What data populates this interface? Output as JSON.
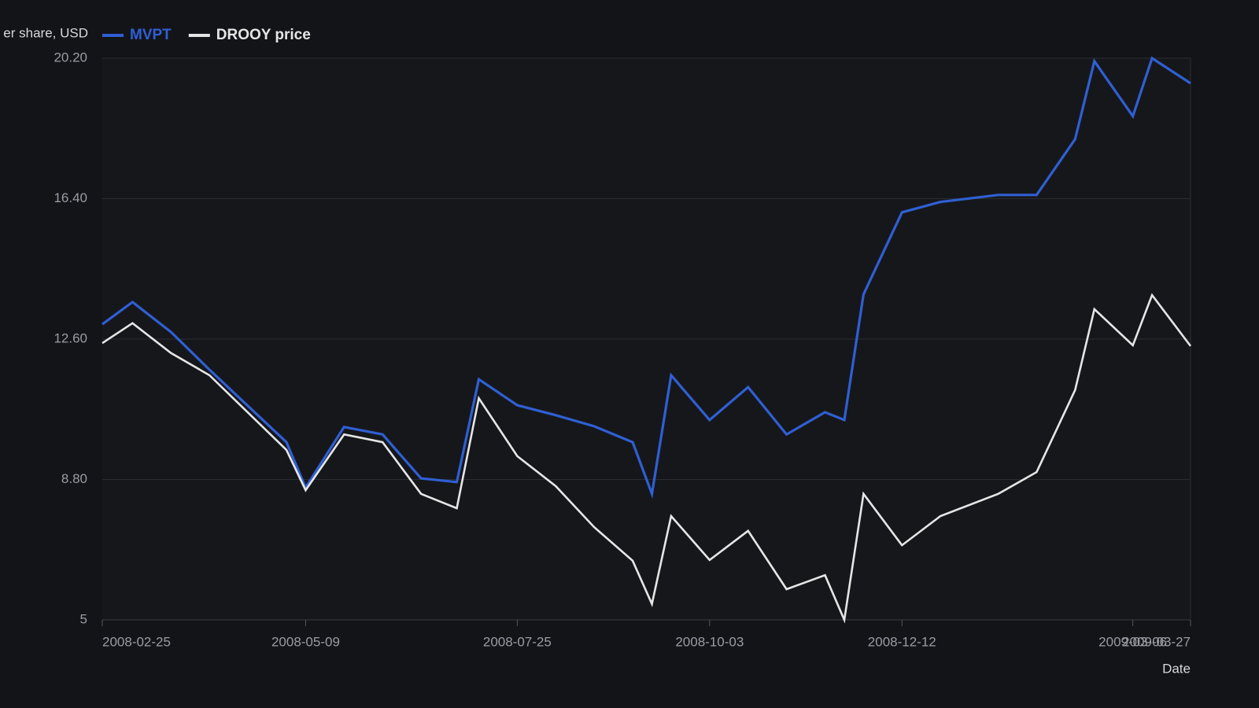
{
  "chart_data": {
    "type": "line",
    "ylabel": "er share, USD",
    "xlabel": "Date",
    "x": [
      "2008-02-25",
      "2008-03-07",
      "2008-03-21",
      "2008-04-04",
      "2008-05-02",
      "2008-05-09",
      "2008-05-23",
      "2008-06-06",
      "2008-06-20",
      "2008-07-03",
      "2008-07-11",
      "2008-07-25",
      "2008-08-08",
      "2008-08-22",
      "2008-09-05",
      "2008-09-12",
      "2008-09-19",
      "2008-10-03",
      "2008-10-17",
      "2008-10-31",
      "2008-11-14",
      "2008-11-21",
      "2008-11-28",
      "2008-12-12",
      "2008-12-26",
      "2009-01-16",
      "2009-01-30",
      "2009-02-13",
      "2009-02-20",
      "2009-03-06",
      "2009-03-13",
      "2009-03-27"
    ],
    "series": [
      {
        "name": "MVPT",
        "color": "#2f5fd3",
        "values": [
          13.0,
          13.6,
          12.79,
          11.77,
          9.81,
          8.58,
          10.22,
          10.02,
          8.83,
          8.73,
          11.51,
          10.81,
          10.54,
          10.24,
          9.81,
          8.41,
          11.62,
          10.41,
          11.3,
          10.02,
          10.62,
          10.41,
          13.81,
          16.03,
          16.31,
          16.5,
          16.5,
          18.01,
          20.12,
          18.63,
          20.2,
          19.52
        ]
      },
      {
        "name": "DROOY price",
        "color": "#e6e6e6",
        "values": [
          12.49,
          13.03,
          12.22,
          11.62,
          9.6,
          8.51,
          10.02,
          9.81,
          8.41,
          8.02,
          11.0,
          9.43,
          8.62,
          7.51,
          6.6,
          5.43,
          7.81,
          6.62,
          7.41,
          5.83,
          6.21,
          5.0,
          8.41,
          7.02,
          7.81,
          8.41,
          9.0,
          11.22,
          13.41,
          12.43,
          13.79,
          12.41
        ]
      }
    ],
    "xlim": [
      "2008-02-25",
      "2009-03-27"
    ],
    "xticks": [
      "2008-02-25",
      "2008-05-09",
      "2008-07-25",
      "2008-10-03",
      "2008-12-12",
      "2009-03-06",
      "2009-03-27"
    ],
    "ylim": [
      5,
      20.2
    ],
    "yticks": [
      5,
      {
        "value": 8.8,
        "label": "8.80"
      },
      {
        "value": 12.6,
        "label": "12.60"
      },
      {
        "value": 16.4,
        "label": "16.40"
      },
      {
        "value": 20.2,
        "label": "20.20"
      }
    ],
    "grid": true
  }
}
